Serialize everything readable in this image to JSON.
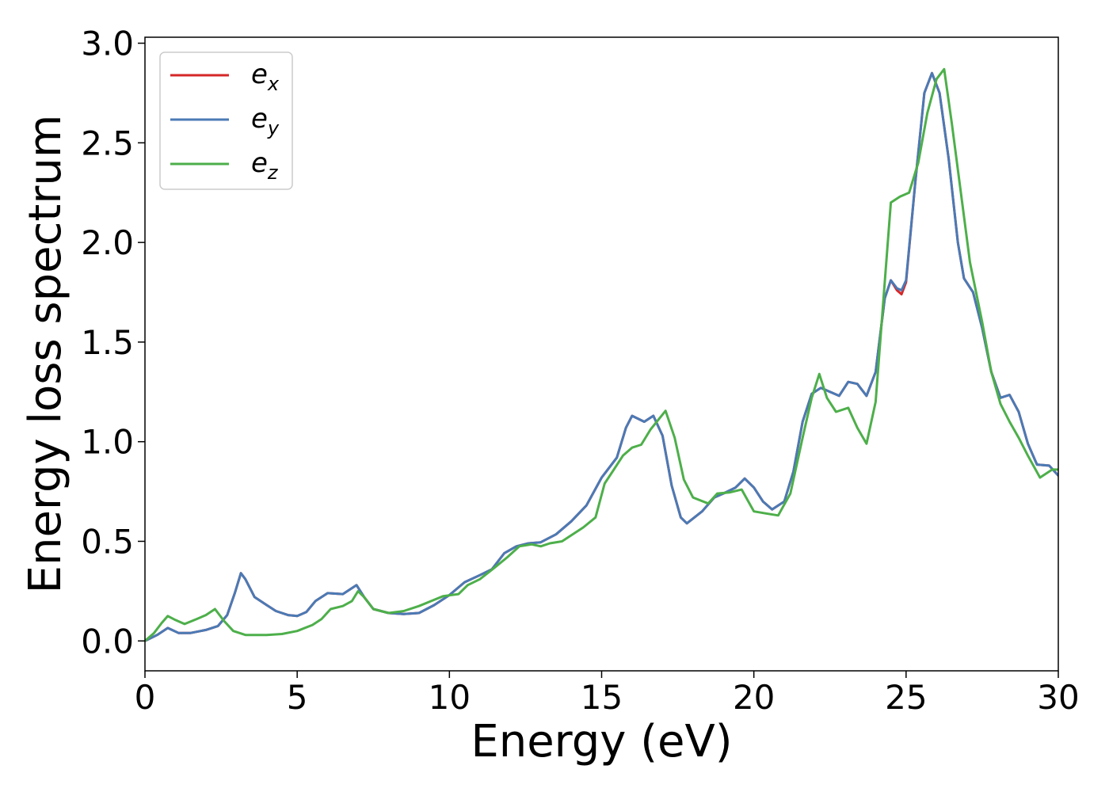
{
  "chart_data": {
    "type": "line",
    "xlabel": "Energy (eV)",
    "ylabel": "Energy loss spectrum",
    "xlim": [
      0,
      30
    ],
    "ylim": [
      -0.15,
      3.03
    ],
    "xticks": [
      0,
      5,
      10,
      15,
      20,
      25,
      30
    ],
    "yticks": [
      0.0,
      0.5,
      1.0,
      1.5,
      2.0,
      2.5,
      3.0
    ],
    "xtick_labels": [
      "0",
      "5",
      "10",
      "15",
      "20",
      "25",
      "30"
    ],
    "ytick_labels": [
      "0.0",
      "0.5",
      "1.0",
      "1.5",
      "2.0",
      "2.5",
      "3.0"
    ],
    "grid": false,
    "legend_position": "top-left",
    "series": [
      {
        "name": "e_x",
        "label_base": "e",
        "label_sub": "x",
        "color": "#d62728",
        "points": [
          [
            0,
            0
          ],
          [
            0.4,
            0.03
          ],
          [
            0.75,
            0.065
          ],
          [
            1.1,
            0.04
          ],
          [
            1.5,
            0.04
          ],
          [
            2.0,
            0.055
          ],
          [
            2.4,
            0.075
          ],
          [
            2.7,
            0.13
          ],
          [
            2.95,
            0.24
          ],
          [
            3.15,
            0.34
          ],
          [
            3.3,
            0.31
          ],
          [
            3.6,
            0.22
          ],
          [
            4.0,
            0.18
          ],
          [
            4.3,
            0.15
          ],
          [
            4.7,
            0.13
          ],
          [
            5.0,
            0.125
          ],
          [
            5.3,
            0.145
          ],
          [
            5.6,
            0.2
          ],
          [
            6.0,
            0.24
          ],
          [
            6.5,
            0.235
          ],
          [
            6.95,
            0.28
          ],
          [
            7.2,
            0.22
          ],
          [
            7.5,
            0.16
          ],
          [
            8.0,
            0.14
          ],
          [
            8.5,
            0.135
          ],
          [
            9.0,
            0.14
          ],
          [
            9.5,
            0.18
          ],
          [
            10.0,
            0.23
          ],
          [
            10.5,
            0.295
          ],
          [
            11.0,
            0.33
          ],
          [
            11.4,
            0.36
          ],
          [
            11.8,
            0.44
          ],
          [
            12.2,
            0.475
          ],
          [
            12.6,
            0.49
          ],
          [
            13.0,
            0.495
          ],
          [
            13.5,
            0.535
          ],
          [
            14.0,
            0.6
          ],
          [
            14.5,
            0.68
          ],
          [
            15.0,
            0.82
          ],
          [
            15.5,
            0.92
          ],
          [
            15.8,
            1.07
          ],
          [
            16.0,
            1.13
          ],
          [
            16.4,
            1.1
          ],
          [
            16.7,
            1.13
          ],
          [
            17.0,
            1.03
          ],
          [
            17.3,
            0.78
          ],
          [
            17.6,
            0.62
          ],
          [
            17.8,
            0.59
          ],
          [
            18.3,
            0.65
          ],
          [
            18.7,
            0.72
          ],
          [
            19.0,
            0.74
          ],
          [
            19.4,
            0.77
          ],
          [
            19.7,
            0.815
          ],
          [
            20.0,
            0.77
          ],
          [
            20.3,
            0.7
          ],
          [
            20.6,
            0.66
          ],
          [
            21.0,
            0.7
          ],
          [
            21.3,
            0.85
          ],
          [
            21.6,
            1.1
          ],
          [
            21.9,
            1.24
          ],
          [
            22.2,
            1.27
          ],
          [
            22.5,
            1.25
          ],
          [
            22.8,
            1.23
          ],
          [
            23.1,
            1.3
          ],
          [
            23.4,
            1.29
          ],
          [
            23.7,
            1.23
          ],
          [
            24.0,
            1.35
          ],
          [
            24.3,
            1.72
          ],
          [
            24.5,
            1.81
          ],
          [
            24.7,
            1.76
          ],
          [
            24.85,
            1.74
          ],
          [
            25.0,
            1.8
          ],
          [
            25.3,
            2.3
          ],
          [
            25.6,
            2.75
          ],
          [
            25.85,
            2.85
          ],
          [
            26.1,
            2.75
          ],
          [
            26.4,
            2.42
          ],
          [
            26.7,
            2.0
          ],
          [
            26.9,
            1.82
          ],
          [
            27.2,
            1.75
          ],
          [
            27.5,
            1.57
          ],
          [
            27.8,
            1.35
          ],
          [
            28.1,
            1.22
          ],
          [
            28.4,
            1.235
          ],
          [
            28.7,
            1.15
          ],
          [
            29.0,
            0.99
          ],
          [
            29.3,
            0.885
          ],
          [
            29.7,
            0.88
          ],
          [
            30.0,
            0.83
          ]
        ]
      },
      {
        "name": "e_y",
        "label_base": "e",
        "label_sub": "y",
        "color": "#4a7ab5",
        "points": [
          [
            0,
            0
          ],
          [
            0.4,
            0.03
          ],
          [
            0.75,
            0.065
          ],
          [
            1.1,
            0.04
          ],
          [
            1.5,
            0.04
          ],
          [
            2.0,
            0.055
          ],
          [
            2.4,
            0.075
          ],
          [
            2.7,
            0.13
          ],
          [
            2.95,
            0.24
          ],
          [
            3.15,
            0.34
          ],
          [
            3.3,
            0.31
          ],
          [
            3.6,
            0.22
          ],
          [
            4.0,
            0.18
          ],
          [
            4.3,
            0.15
          ],
          [
            4.7,
            0.13
          ],
          [
            5.0,
            0.125
          ],
          [
            5.3,
            0.145
          ],
          [
            5.6,
            0.2
          ],
          [
            6.0,
            0.24
          ],
          [
            6.5,
            0.235
          ],
          [
            6.95,
            0.28
          ],
          [
            7.2,
            0.22
          ],
          [
            7.5,
            0.16
          ],
          [
            8.0,
            0.14
          ],
          [
            8.5,
            0.135
          ],
          [
            9.0,
            0.14
          ],
          [
            9.5,
            0.18
          ],
          [
            10.0,
            0.23
          ],
          [
            10.5,
            0.295
          ],
          [
            11.0,
            0.33
          ],
          [
            11.4,
            0.36
          ],
          [
            11.8,
            0.44
          ],
          [
            12.2,
            0.475
          ],
          [
            12.6,
            0.49
          ],
          [
            13.0,
            0.495
          ],
          [
            13.5,
            0.535
          ],
          [
            14.0,
            0.6
          ],
          [
            14.5,
            0.68
          ],
          [
            15.0,
            0.82
          ],
          [
            15.5,
            0.92
          ],
          [
            15.8,
            1.07
          ],
          [
            16.0,
            1.13
          ],
          [
            16.4,
            1.1
          ],
          [
            16.7,
            1.13
          ],
          [
            17.0,
            1.03
          ],
          [
            17.3,
            0.78
          ],
          [
            17.6,
            0.62
          ],
          [
            17.8,
            0.59
          ],
          [
            18.3,
            0.65
          ],
          [
            18.7,
            0.72
          ],
          [
            19.0,
            0.74
          ],
          [
            19.4,
            0.77
          ],
          [
            19.7,
            0.815
          ],
          [
            20.0,
            0.77
          ],
          [
            20.3,
            0.7
          ],
          [
            20.6,
            0.66
          ],
          [
            21.0,
            0.7
          ],
          [
            21.3,
            0.85
          ],
          [
            21.6,
            1.1
          ],
          [
            21.9,
            1.24
          ],
          [
            22.2,
            1.27
          ],
          [
            22.5,
            1.25
          ],
          [
            22.8,
            1.23
          ],
          [
            23.1,
            1.3
          ],
          [
            23.4,
            1.29
          ],
          [
            23.7,
            1.23
          ],
          [
            24.0,
            1.35
          ],
          [
            24.3,
            1.72
          ],
          [
            24.5,
            1.81
          ],
          [
            24.7,
            1.77
          ],
          [
            24.85,
            1.76
          ],
          [
            25.0,
            1.81
          ],
          [
            25.3,
            2.3
          ],
          [
            25.6,
            2.75
          ],
          [
            25.85,
            2.85
          ],
          [
            26.1,
            2.75
          ],
          [
            26.4,
            2.42
          ],
          [
            26.7,
            2.0
          ],
          [
            26.9,
            1.82
          ],
          [
            27.2,
            1.75
          ],
          [
            27.5,
            1.57
          ],
          [
            27.8,
            1.35
          ],
          [
            28.1,
            1.22
          ],
          [
            28.4,
            1.235
          ],
          [
            28.7,
            1.15
          ],
          [
            29.0,
            0.99
          ],
          [
            29.3,
            0.885
          ],
          [
            29.7,
            0.88
          ],
          [
            30.0,
            0.83
          ]
        ]
      },
      {
        "name": "e_z",
        "label_base": "e",
        "label_sub": "z",
        "color": "#4daf4a",
        "points": [
          [
            0,
            0
          ],
          [
            0.3,
            0.04
          ],
          [
            0.55,
            0.09
          ],
          [
            0.75,
            0.125
          ],
          [
            1.0,
            0.105
          ],
          [
            1.3,
            0.085
          ],
          [
            1.7,
            0.11
          ],
          [
            2.0,
            0.13
          ],
          [
            2.3,
            0.16
          ],
          [
            2.6,
            0.1
          ],
          [
            2.9,
            0.05
          ],
          [
            3.3,
            0.03
          ],
          [
            4.0,
            0.03
          ],
          [
            4.5,
            0.035
          ],
          [
            5.0,
            0.05
          ],
          [
            5.5,
            0.08
          ],
          [
            5.8,
            0.11
          ],
          [
            6.1,
            0.16
          ],
          [
            6.5,
            0.175
          ],
          [
            6.8,
            0.2
          ],
          [
            7.0,
            0.25
          ],
          [
            7.2,
            0.22
          ],
          [
            7.5,
            0.16
          ],
          [
            8.0,
            0.14
          ],
          [
            8.5,
            0.15
          ],
          [
            9.0,
            0.175
          ],
          [
            9.4,
            0.2
          ],
          [
            9.8,
            0.225
          ],
          [
            10.3,
            0.235
          ],
          [
            10.6,
            0.28
          ],
          [
            11.0,
            0.31
          ],
          [
            11.5,
            0.37
          ],
          [
            11.9,
            0.42
          ],
          [
            12.3,
            0.475
          ],
          [
            12.7,
            0.485
          ],
          [
            13.0,
            0.475
          ],
          [
            13.3,
            0.49
          ],
          [
            13.7,
            0.5
          ],
          [
            14.0,
            0.53
          ],
          [
            14.4,
            0.57
          ],
          [
            14.8,
            0.62
          ],
          [
            15.1,
            0.79
          ],
          [
            15.4,
            0.86
          ],
          [
            15.7,
            0.93
          ],
          [
            16.0,
            0.97
          ],
          [
            16.3,
            0.985
          ],
          [
            16.6,
            1.06
          ],
          [
            17.1,
            1.155
          ],
          [
            17.4,
            1.02
          ],
          [
            17.7,
            0.81
          ],
          [
            18.0,
            0.72
          ],
          [
            18.5,
            0.69
          ],
          [
            18.8,
            0.74
          ],
          [
            19.2,
            0.745
          ],
          [
            19.6,
            0.76
          ],
          [
            20.0,
            0.65
          ],
          [
            20.4,
            0.64
          ],
          [
            20.8,
            0.63
          ],
          [
            21.2,
            0.74
          ],
          [
            21.6,
            1.02
          ],
          [
            21.9,
            1.22
          ],
          [
            22.15,
            1.34
          ],
          [
            22.4,
            1.22
          ],
          [
            22.7,
            1.15
          ],
          [
            23.1,
            1.17
          ],
          [
            23.4,
            1.07
          ],
          [
            23.7,
            0.99
          ],
          [
            24.0,
            1.2
          ],
          [
            24.3,
            1.8
          ],
          [
            24.5,
            2.2
          ],
          [
            24.8,
            2.23
          ],
          [
            25.1,
            2.25
          ],
          [
            25.4,
            2.4
          ],
          [
            25.7,
            2.65
          ],
          [
            26.0,
            2.82
          ],
          [
            26.25,
            2.87
          ],
          [
            26.5,
            2.6
          ],
          [
            26.8,
            2.25
          ],
          [
            27.1,
            1.9
          ],
          [
            27.5,
            1.6
          ],
          [
            27.8,
            1.35
          ],
          [
            28.1,
            1.19
          ],
          [
            28.4,
            1.1
          ],
          [
            28.7,
            1.02
          ],
          [
            29.0,
            0.93
          ],
          [
            29.4,
            0.82
          ],
          [
            29.8,
            0.86
          ],
          [
            30.0,
            0.86
          ]
        ]
      }
    ]
  }
}
